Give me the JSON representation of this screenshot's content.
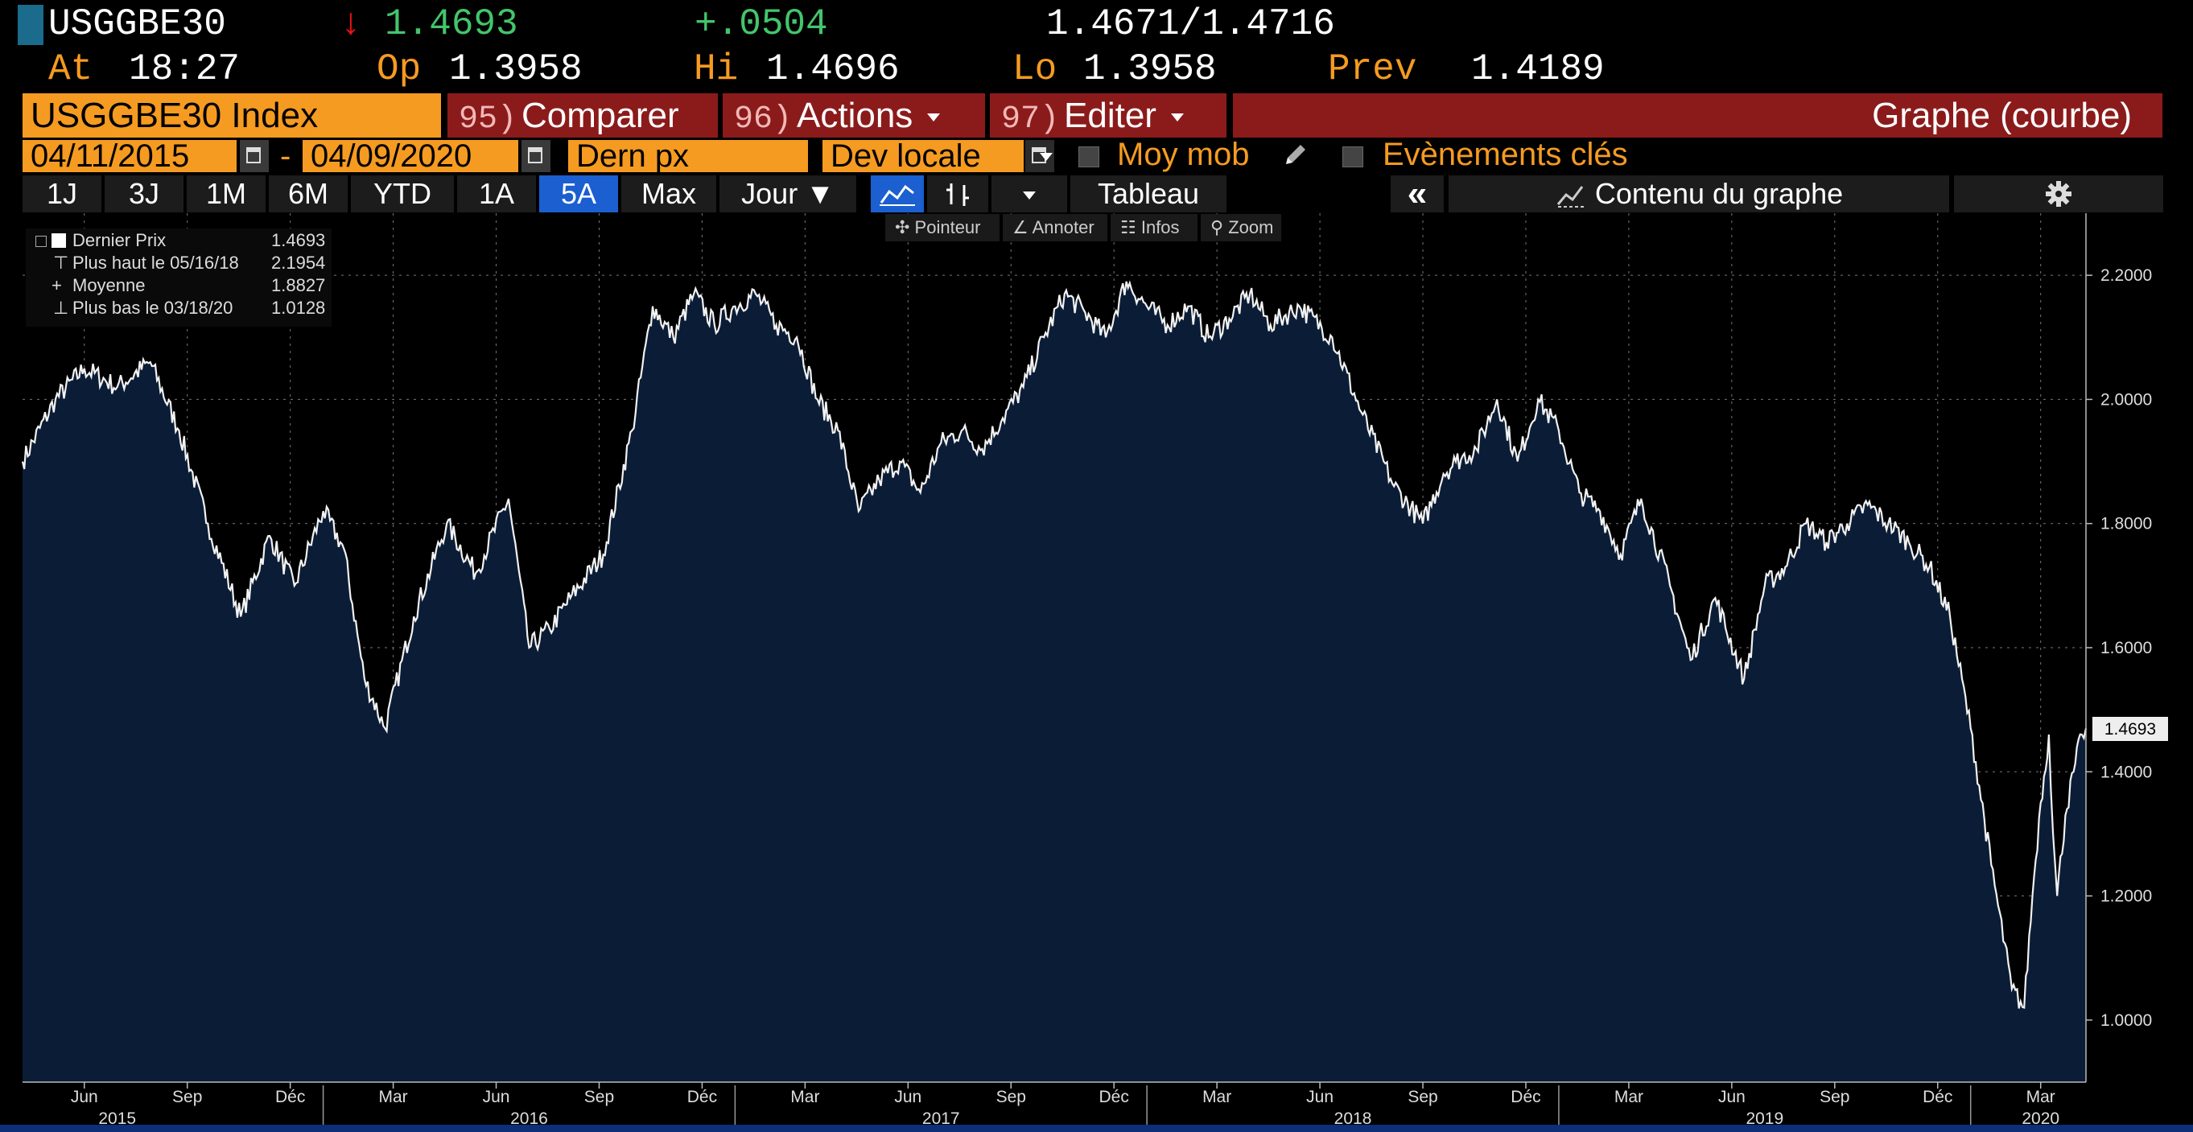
{
  "header": {
    "ticker": "USGGBE30",
    "arrow": "↓",
    "last": "1.4693",
    "change": "+.0504",
    "bid_ask": "1.4671/1.4716",
    "at_label": "At",
    "time": "18:27",
    "op_label": "Op",
    "op": "1.3958",
    "hi_label": "Hi",
    "hi": "1.4696",
    "lo_label": "Lo",
    "lo": "1.3958",
    "prev_label": "Prev",
    "prev": "1.4189"
  },
  "menu": {
    "security": "USGGBE30 Index",
    "compare_num": "95)",
    "compare": "Comparer",
    "actions_num": "96)",
    "actions": "Actions",
    "edit_num": "97)",
    "edit": "Editer",
    "graph_type": "Graphe (courbe)"
  },
  "range": {
    "start": "04/11/2015",
    "separator": "-",
    "end": "04/09/2020",
    "field": "Dern px",
    "currency": "Dev locale",
    "moving_avg": "Moy mob",
    "key_events": "Evènements clés"
  },
  "toolbar": {
    "periods": [
      "1J",
      "3J",
      "1M",
      "6M",
      "YTD",
      "1A",
      "5A",
      "Max"
    ],
    "active_period": "5A",
    "frequency": "Jour ▼",
    "table": "Tableau",
    "collapse": "«",
    "content": "Contenu du graphe"
  },
  "subtoolbar": {
    "pointer": "Pointeur",
    "annotate": "Annoter",
    "info": "Infos",
    "zoom": "Zoom"
  },
  "legend": {
    "last_label": "Dernier Prix",
    "last_value": "1.4693",
    "high_label": "Plus haut le 05/16/18",
    "high_value": "2.1954",
    "avg_label": "Moyenne",
    "avg_value": "1.8827",
    "low_label": "Plus bas le 03/18/20",
    "low_value": "1.0128"
  },
  "chart_data": {
    "type": "area",
    "ylim": [
      0.9,
      2.3
    ],
    "yticks": [
      "1.0000",
      "1.2000",
      "1.4000",
      "1.6000",
      "1.8000",
      "2.0000",
      "2.2000"
    ],
    "last_value_label": "1.4693",
    "month_ticks": [
      "Jun",
      "Sep",
      "Déc",
      "Mar",
      "Jun",
      "Sep",
      "Déc",
      "Mar",
      "Jun",
      "Sep",
      "Déc",
      "Mar",
      "Jun",
      "Sep",
      "Déc",
      "Mar",
      "Jun",
      "Sep",
      "Déc",
      "Mar"
    ],
    "years": [
      "2015",
      "2016",
      "2017",
      "2018",
      "2019",
      "2020"
    ],
    "x": [
      2015.27,
      2015.35,
      2015.42,
      2015.5,
      2015.58,
      2015.65,
      2015.72,
      2015.8,
      2015.87,
      2015.93,
      2016.0,
      2016.05,
      2016.1,
      2016.15,
      2016.22,
      2016.3,
      2016.37,
      2016.45,
      2016.5,
      2016.55,
      2016.6,
      2016.68,
      2016.75,
      2016.8,
      2016.85,
      2016.9,
      2016.95,
      2017.0,
      2017.05,
      2017.1,
      2017.15,
      2017.2,
      2017.25,
      2017.3,
      2017.35,
      2017.4,
      2017.45,
      2017.5,
      2017.55,
      2017.6,
      2017.65,
      2017.7,
      2017.75,
      2017.8,
      2017.85,
      2017.9,
      2017.95,
      2018.0,
      2018.05,
      2018.1,
      2018.15,
      2018.2,
      2018.25,
      2018.3,
      2018.37,
      2018.45,
      2018.52,
      2018.6,
      2018.67,
      2018.72,
      2018.75,
      2018.8,
      2018.85,
      2018.9,
      2018.95,
      2019.0,
      2019.05,
      2019.1,
      2019.15,
      2019.2,
      2019.27,
      2019.32,
      2019.38,
      2019.45,
      2019.5,
      2019.55,
      2019.6,
      2019.65,
      2019.7,
      2019.75,
      2019.8,
      2019.85,
      2019.9,
      2019.95,
      2020.0,
      2020.05,
      2020.1,
      2020.13,
      2020.15,
      2020.17,
      2020.19,
      2020.2,
      2020.21,
      2020.23,
      2020.25,
      2020.27,
      2020.28
    ],
    "values": [
      1.9,
      2.0,
      2.05,
      2.02,
      2.06,
      1.95,
      1.8,
      1.65,
      1.78,
      1.7,
      1.82,
      1.76,
      1.55,
      1.47,
      1.65,
      1.8,
      1.72,
      1.84,
      1.6,
      1.63,
      1.68,
      1.75,
      1.95,
      2.15,
      2.1,
      2.17,
      2.12,
      2.15,
      2.17,
      2.12,
      2.1,
      2.0,
      1.95,
      1.82,
      1.87,
      1.9,
      1.85,
      1.93,
      1.95,
      1.92,
      1.97,
      2.02,
      2.1,
      2.17,
      2.14,
      2.1,
      2.19,
      2.15,
      2.12,
      2.15,
      2.1,
      2.13,
      2.17,
      2.12,
      2.15,
      2.1,
      1.98,
      1.86,
      1.8,
      1.88,
      1.9,
      1.92,
      2.0,
      1.9,
      2.0,
      1.95,
      1.85,
      1.82,
      1.75,
      1.84,
      1.7,
      1.58,
      1.68,
      1.55,
      1.7,
      1.73,
      1.8,
      1.77,
      1.8,
      1.83,
      1.8,
      1.77,
      1.73,
      1.65,
      1.47,
      1.25,
      1.05,
      1.02,
      1.2,
      1.35,
      1.46,
      1.3,
      1.2,
      1.33,
      1.4,
      1.46,
      1.47
    ]
  }
}
